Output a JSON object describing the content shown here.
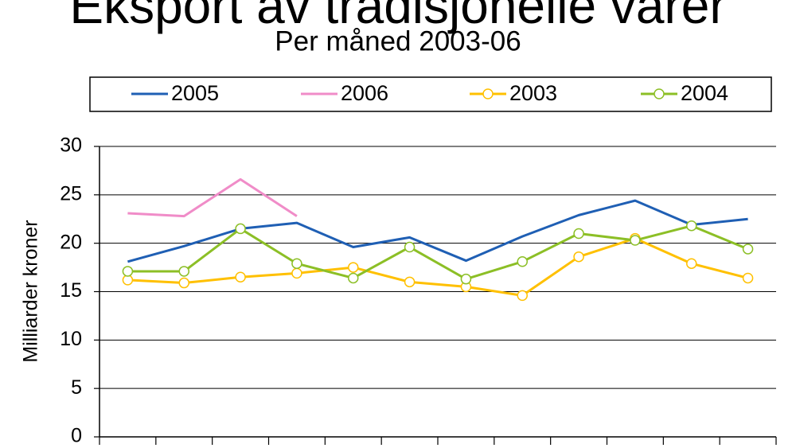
{
  "chart_data": {
    "type": "line",
    "title": "Eksport av tradisjonelle varer",
    "subtitle": "Per måned 2003-06",
    "y_label": "Milliarder kroner",
    "categories": [
      null,
      null,
      null,
      null,
      null,
      null,
      null,
      null,
      null,
      null,
      null,
      null
    ],
    "series": [
      {
        "name": "2005",
        "color": "#1f5fb4",
        "marker": false,
        "values": [
          18.1,
          19.7,
          21.5,
          22.1,
          19.6,
          20.6,
          18.2,
          20.7,
          22.9,
          24.4,
          21.9,
          22.5
        ]
      },
      {
        "name": "2006",
        "color": "#f08cc8",
        "marker": false,
        "values": [
          23.1,
          22.8,
          26.6,
          22.8,
          null,
          null,
          null,
          null,
          null,
          null,
          null,
          null
        ]
      },
      {
        "name": "2003",
        "color": "#ffc000",
        "marker": true,
        "values": [
          16.2,
          15.9,
          16.5,
          16.9,
          17.5,
          16.0,
          15.5,
          14.6,
          18.6,
          20.5,
          17.9,
          16.4
        ]
      },
      {
        "name": "2004",
        "color": "#8cbf26",
        "marker": true,
        "values": [
          17.1,
          17.1,
          21.5,
          17.9,
          16.4,
          19.6,
          16.3,
          18.1,
          21.0,
          20.3,
          21.8,
          19.4
        ]
      }
    ],
    "ylim": [
      0,
      30
    ],
    "yticks": [
      0,
      5,
      10,
      15,
      20,
      25,
      30
    ],
    "grid": true,
    "legend": "top"
  }
}
